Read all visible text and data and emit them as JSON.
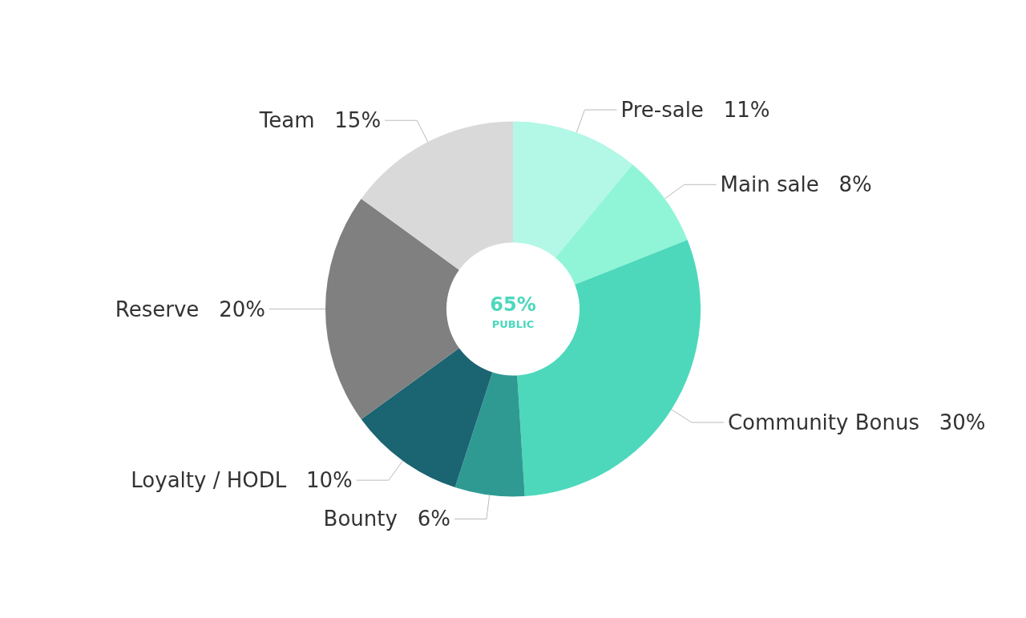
{
  "chart_data": {
    "type": "donut",
    "categories": [
      "Pre-sale",
      "Main sale",
      "Community Bonus",
      "Bounty",
      "Loyalty / HODL",
      "Reserve",
      "Team"
    ],
    "values": [
      11,
      8,
      30,
      6,
      10,
      20,
      15
    ],
    "value_labels": [
      "11%",
      "8%",
      "30%",
      "6%",
      "10%",
      "20%",
      "15%"
    ],
    "colors": [
      "#b3f7e6",
      "#90f5d6",
      "#4dd8bc",
      "#2f9a92",
      "#1b6472",
      "#808080",
      "#d9d9d9"
    ],
    "annotations": [
      "65%",
      "PUBLIC"
    ],
    "legend": false
  }
}
